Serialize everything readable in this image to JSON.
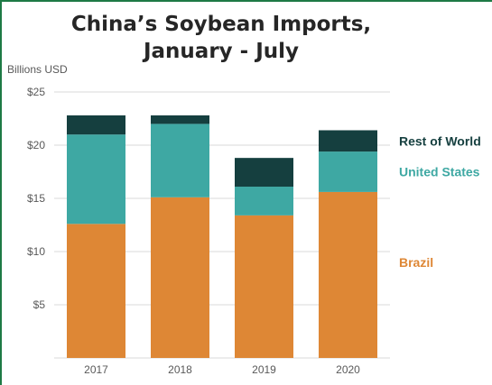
{
  "chart_data": {
    "type": "bar",
    "stacked": true,
    "title_lines": [
      "China’s Soybean Imports,",
      "January - July"
    ],
    "ylabel": "Billions USD",
    "ylim": [
      0,
      25
    ],
    "y_ticks": [
      5,
      10,
      15,
      20,
      25
    ],
    "y_tick_labels": [
      "$5",
      "$10",
      "$15",
      "$20",
      "$25"
    ],
    "categories": [
      "2017",
      "2018",
      "2019",
      "2020"
    ],
    "series": [
      {
        "name": "Brazil",
        "color": "#de8735",
        "values": [
          12.6,
          15.1,
          13.4,
          15.6
        ]
      },
      {
        "name": "United States",
        "color": "#3ea8a3",
        "values": [
          8.4,
          6.9,
          2.7,
          3.8
        ]
      },
      {
        "name": "Rest of World",
        "color": "#153f3f",
        "values": [
          1.8,
          0.8,
          2.7,
          2.0
        ]
      }
    ],
    "legend_placement": "right",
    "grid": true
  }
}
